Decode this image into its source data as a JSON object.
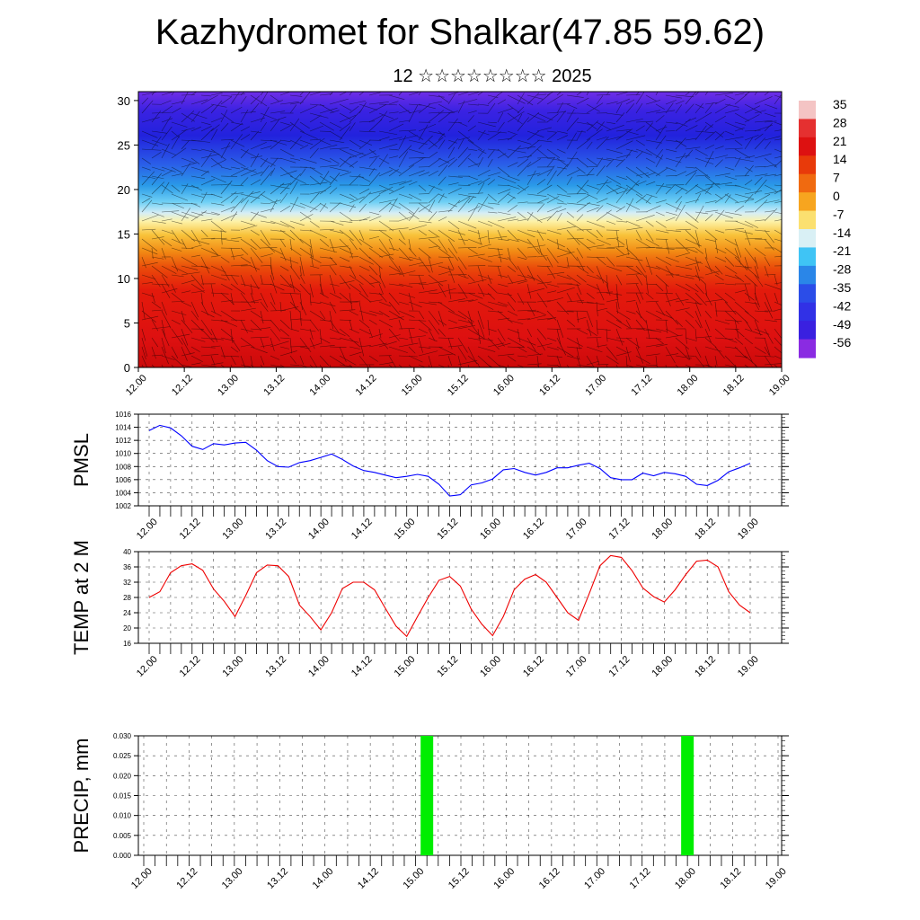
{
  "title": "Kazhydromet for Shalkar(47.85 59.62)",
  "subtitle": "12 ☆☆☆☆☆☆☆☆ 2025",
  "time_labels": [
    "12.00",
    "12.12",
    "13.00",
    "13.12",
    "14.00",
    "14.12",
    "15.00",
    "15.12",
    "16.00",
    "16.12",
    "17.00",
    "17.12",
    "18.00",
    "18.12",
    "19.00"
  ],
  "chart_data": [
    {
      "type": "heatmap",
      "name": "vertical cross-section",
      "x": [
        "12.00",
        "12.12",
        "13.00",
        "13.12",
        "14.00",
        "14.12",
        "15.00",
        "15.12",
        "16.00",
        "16.12",
        "17.00",
        "17.12",
        "18.00",
        "18.12",
        "19.00"
      ],
      "y_ticks": [
        0,
        5,
        10,
        15,
        20,
        25,
        30
      ],
      "ylim": [
        0,
        31
      ],
      "colorbar": {
        "levels": [
          35,
          28,
          21,
          14,
          7,
          0,
          -7,
          -14,
          -21,
          -28,
          -35,
          -42,
          -49,
          -56
        ],
        "colors_top_to_bottom": [
          "#f4c4c4",
          "#e53030",
          "#dd1111",
          "#e83a0a",
          "#f06a10",
          "#f7a51f",
          "#fbe070",
          "#d9f0f5",
          "#3fc4f5",
          "#2a86e8",
          "#2b4de8",
          "#3131e6",
          "#3a20e0",
          "#8a2be2"
        ]
      },
      "grid": false
    },
    {
      "type": "line",
      "ylabel": "PMSL",
      "ylim": [
        1002,
        1016
      ],
      "y_ticks": [
        1002,
        1004,
        1006,
        1008,
        1010,
        1012,
        1014,
        1016
      ],
      "color": "#0000ff",
      "grid": true,
      "x_step_hours": 3,
      "values": [
        1013.5,
        1014.3,
        1013.9,
        1012.7,
        1011.1,
        1010.6,
        1011.5,
        1011.3,
        1011.6,
        1011.7,
        1010.5,
        1008.9,
        1008.0,
        1007.9,
        1008.6,
        1008.9,
        1009.4,
        1009.9,
        1009.1,
        1008.1,
        1007.4,
        1007.1,
        1006.7,
        1006.3,
        1006.5,
        1006.8,
        1006.5,
        1005.3,
        1003.5,
        1003.7,
        1005.2,
        1005.5,
        1006.1,
        1007.5,
        1007.7,
        1007.1,
        1006.7,
        1007.1,
        1007.8,
        1007.8,
        1008.2,
        1008.5,
        1007.7,
        1006.3,
        1006.0,
        1006.0,
        1007.0,
        1006.6,
        1007.1,
        1006.9,
        1006.5,
        1005.3,
        1005.1,
        1005.9,
        1007.2,
        1007.8,
        1008.5
      ]
    },
    {
      "type": "line",
      "ylabel": "TEMP at 2 M",
      "ylim": [
        16,
        40
      ],
      "y_ticks": [
        16,
        20,
        24,
        28,
        32,
        36,
        40
      ],
      "color": "#ee0000",
      "grid": true,
      "x_step_hours": 3,
      "values": [
        28,
        29.5,
        34.5,
        36.3,
        36.8,
        35.1,
        30.2,
        27,
        23,
        28.5,
        34.5,
        36.5,
        36.3,
        33.5,
        26,
        23,
        19.5,
        24,
        30.3,
        32,
        32,
        30,
        25.2,
        20.5,
        17.8,
        23,
        28,
        32.5,
        33.5,
        31,
        25,
        21,
        18,
        23,
        30,
        32.8,
        34,
        32,
        28,
        24,
        22,
        29,
        36.3,
        39,
        38.5,
        35,
        30.5,
        28.2,
        26.8,
        30,
        34,
        37.5,
        37.8,
        36,
        29.5,
        26,
        24
      ]
    },
    {
      "type": "bar",
      "ylabel": "PRECIP, mm",
      "ylim": [
        0,
        0.03
      ],
      "y_ticks": [
        "0.000",
        "0.005",
        "0.010",
        "0.015",
        "0.020",
        "0.025",
        "0.030"
      ],
      "color": "#00ee00",
      "grid": true,
      "bars": [
        {
          "x": "15.03",
          "value": 0.03
        },
        {
          "x": "18.00",
          "value": 0.03
        }
      ]
    }
  ]
}
